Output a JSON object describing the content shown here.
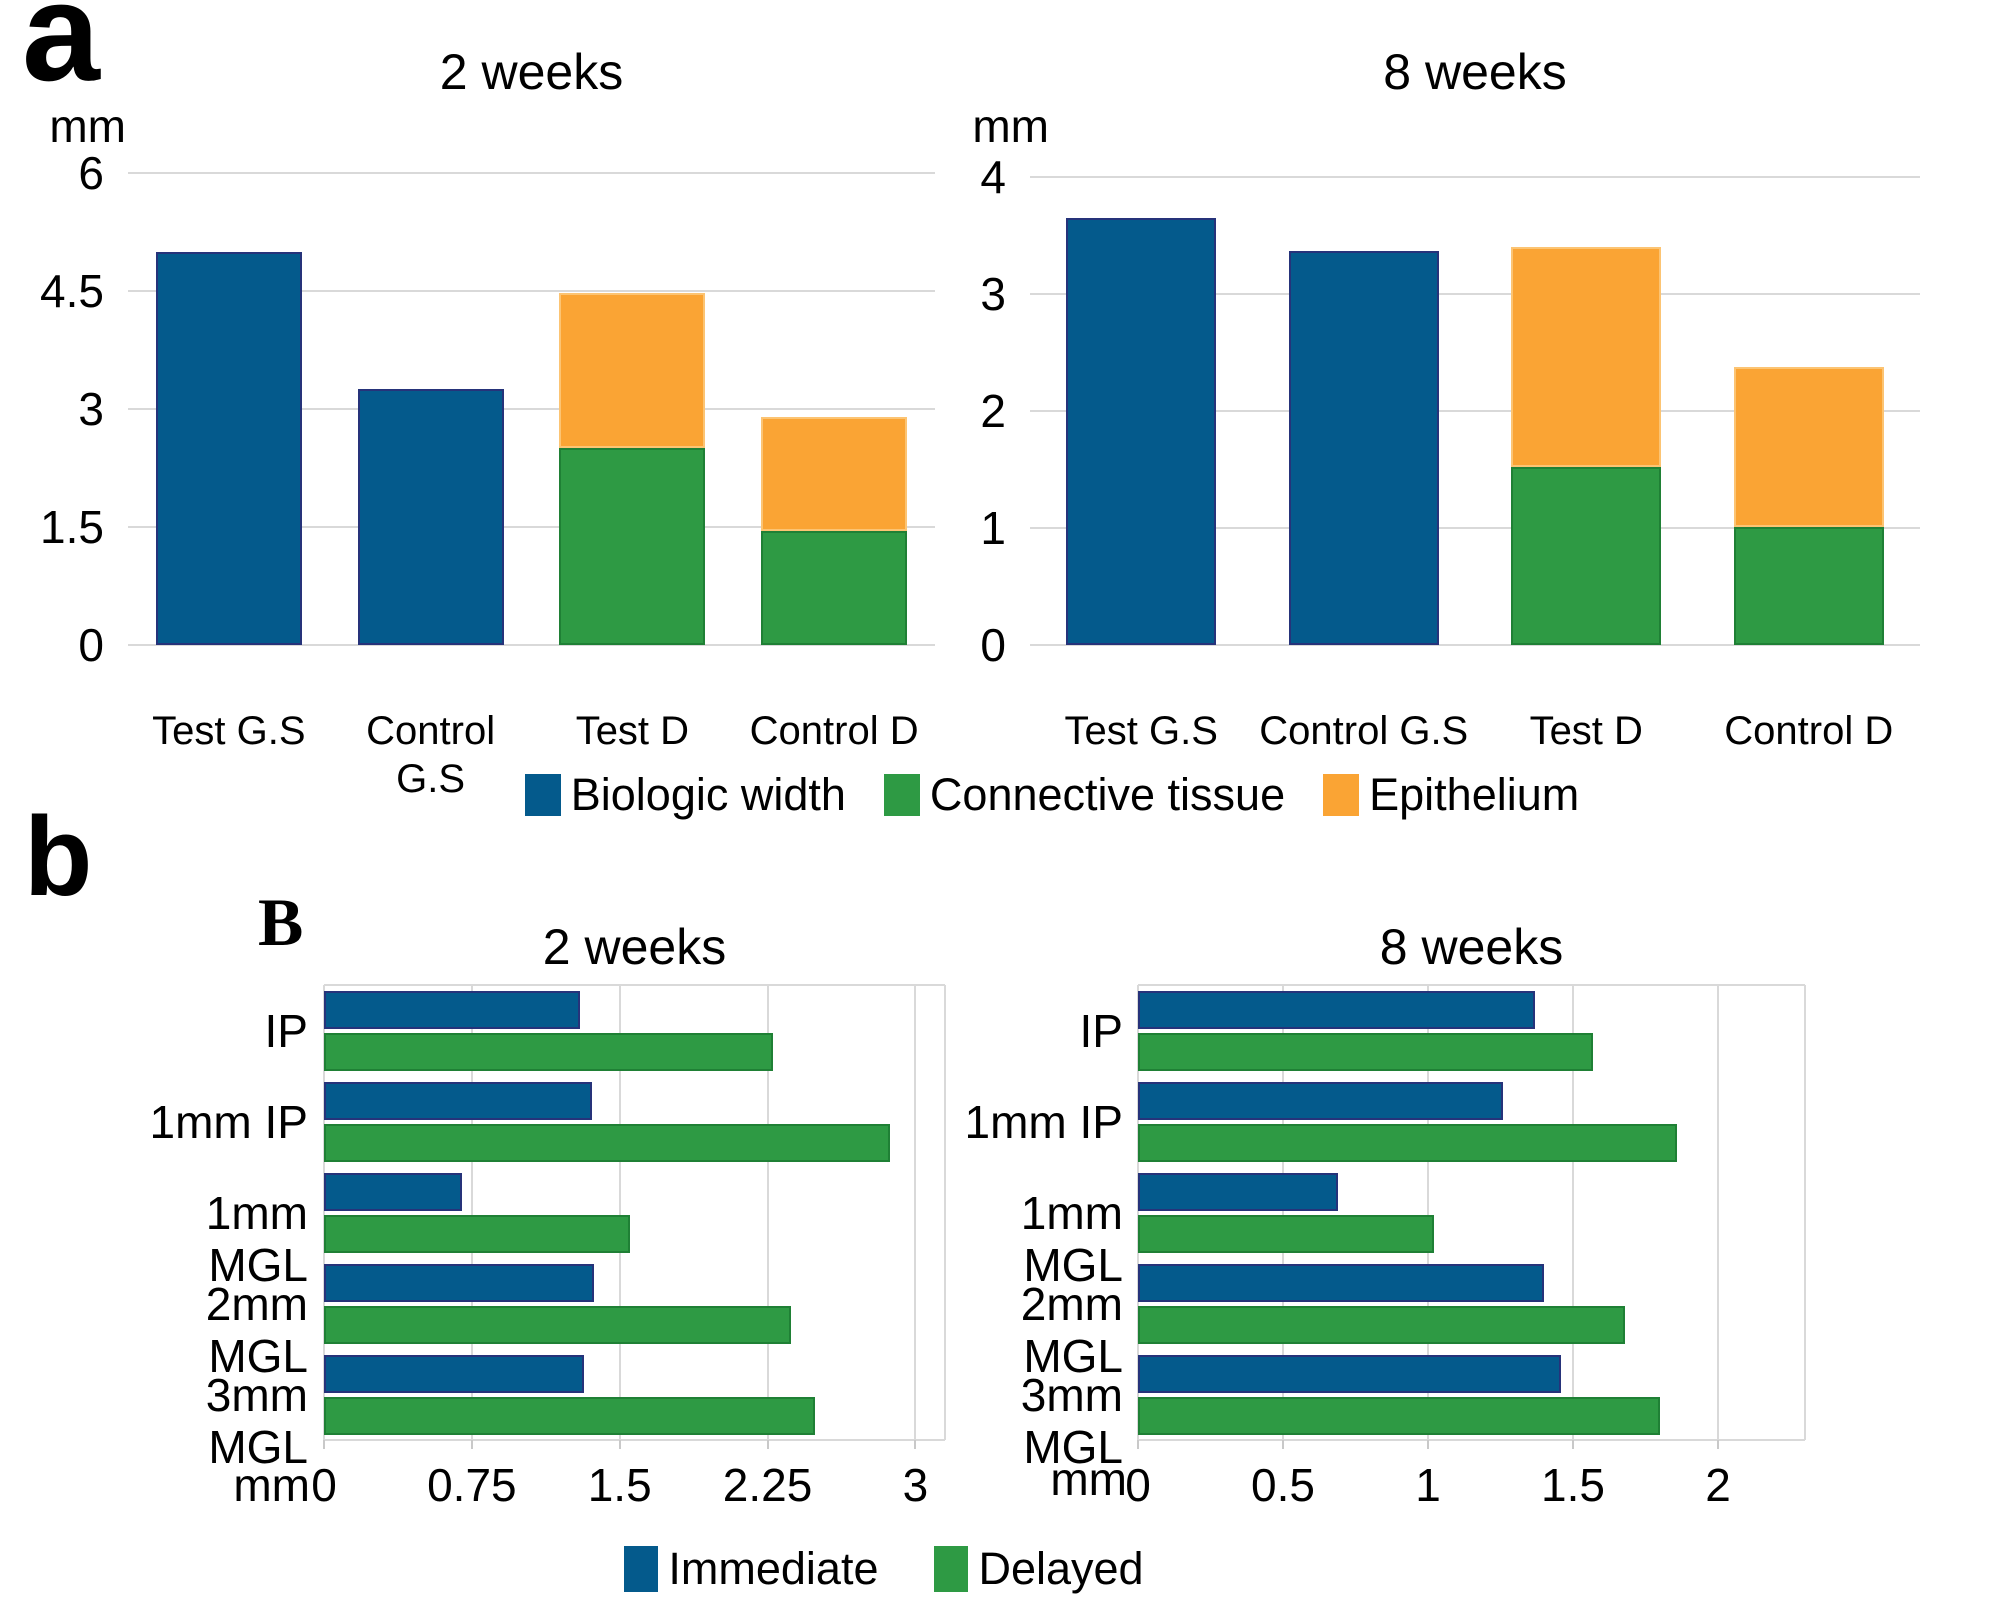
{
  "figure": {
    "panel_a_label": "a",
    "panel_b_label": "b",
    "panel_b_inner_label": "B"
  },
  "colors": {
    "blue": "#045A8C",
    "green": "#2E9A44",
    "orange": "#FAA434",
    "blue_stroke": "#26337A",
    "green_stroke": "#1F8035",
    "orange_stroke": "#FCC473",
    "gridline": "#D9D9D9",
    "text": "#000000"
  },
  "chart_data": [
    {
      "id": "a-2weeks",
      "type": "bar",
      "orientation": "vertical",
      "stacked": true,
      "title": "2 weeks",
      "unit_label": "mm",
      "categories": [
        "Test G.S",
        "Control G.S",
        "Test D",
        "Control D"
      ],
      "yticks": [
        6,
        4.5,
        3,
        1.5,
        0
      ],
      "ylim": [
        0,
        6
      ],
      "grid": true,
      "series": [
        {
          "name": "Biologic width",
          "color_key": "blue",
          "values": [
            5.0,
            3.25,
            0,
            0
          ]
        },
        {
          "name": "Connective tissue",
          "color_key": "green",
          "values": [
            0,
            0,
            2.5,
            1.45
          ]
        },
        {
          "name": "Epithelium",
          "color_key": "orange",
          "values": [
            0,
            0,
            1.97,
            1.45
          ]
        }
      ]
    },
    {
      "id": "a-8weeks",
      "type": "bar",
      "orientation": "vertical",
      "stacked": true,
      "title": "8 weeks",
      "unit_label": "mm",
      "categories": [
        "Test G.S",
        "Control G.S",
        "Test D",
        "Control D"
      ],
      "yticks": [
        4,
        3,
        2,
        1,
        0
      ],
      "ylim": [
        0,
        4
      ],
      "grid": true,
      "series": [
        {
          "name": "Biologic width",
          "color_key": "blue",
          "values": [
            3.65,
            3.37,
            0,
            0
          ]
        },
        {
          "name": "Connective tissue",
          "color_key": "green",
          "values": [
            0,
            0,
            1.52,
            1.01
          ]
        },
        {
          "name": "Epithelium",
          "color_key": "orange",
          "values": [
            0,
            0,
            1.88,
            1.37
          ]
        }
      ]
    },
    {
      "id": "b-2weeks",
      "type": "bar",
      "orientation": "horizontal",
      "stacked": false,
      "title": "2 weeks",
      "unit_label": "mm",
      "categories": [
        "IP",
        "1mm IP",
        "1mm MGL",
        "2mm MGL",
        "3mm MGL"
      ],
      "xticks": [
        0,
        0.75,
        1.5,
        2.25,
        3
      ],
      "xlim": [
        0,
        3.15
      ],
      "grid": true,
      "series": [
        {
          "name": "Immediate",
          "color_key": "blue",
          "values": [
            1.3,
            1.36,
            0.7,
            1.37,
            1.32
          ]
        },
        {
          "name": "Delayed",
          "color_key": "green",
          "values": [
            2.28,
            2.87,
            1.55,
            2.37,
            2.49
          ]
        }
      ]
    },
    {
      "id": "b-8weeks",
      "type": "bar",
      "orientation": "horizontal",
      "stacked": false,
      "title": "8 weeks",
      "unit_label": "mm",
      "categories": [
        "IP",
        "1mm IP",
        "1mm MGL",
        "2mm MGL",
        "3mm MGL"
      ],
      "xticks": [
        0,
        0.5,
        1,
        1.5,
        2
      ],
      "xlim": [
        0,
        2.3
      ],
      "grid": true,
      "series": [
        {
          "name": "Immediate",
          "color_key": "blue",
          "values": [
            1.37,
            1.26,
            0.69,
            1.4,
            1.46
          ]
        },
        {
          "name": "Delayed",
          "color_key": "green",
          "values": [
            1.57,
            1.86,
            1.02,
            1.68,
            1.8
          ]
        }
      ]
    }
  ],
  "legends": {
    "panel_a": {
      "items": [
        {
          "label": "Biologic width",
          "color_key": "blue"
        },
        {
          "label": "Connective tissue",
          "color_key": "green"
        },
        {
          "label": "Epithelium",
          "color_key": "orange"
        }
      ]
    },
    "panel_b": {
      "items": [
        {
          "label": "Immediate",
          "color_key": "blue"
        },
        {
          "label": "Delayed",
          "color_key": "green"
        }
      ]
    }
  }
}
